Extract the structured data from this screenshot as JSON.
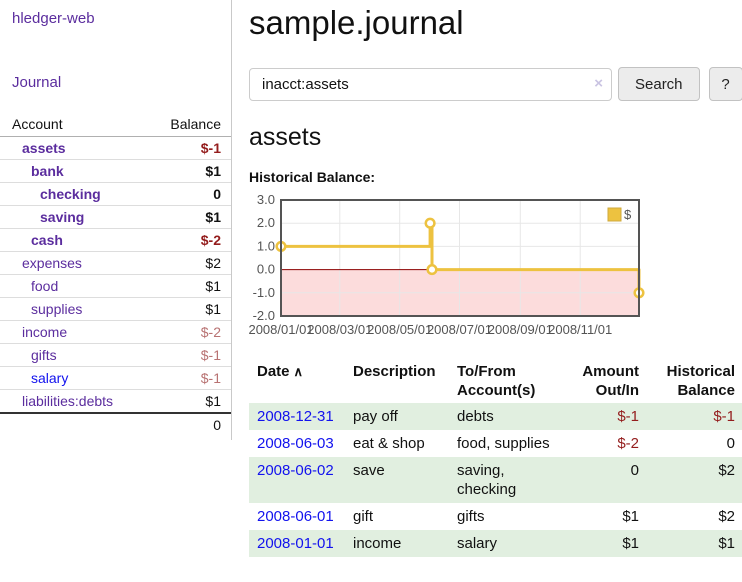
{
  "app": {
    "title": "hledger-web"
  },
  "sidebar": {
    "nav": [
      {
        "label": "Journal"
      }
    ],
    "accounts_table": {
      "headers": [
        "Account",
        "Balance"
      ],
      "rows": [
        {
          "name": "assets",
          "balance": "$-1",
          "level": 1,
          "bold": true,
          "balance_style": "negative-strong"
        },
        {
          "name": "bank",
          "balance": "$1",
          "level": 2,
          "bold": true,
          "balance_style": "normal"
        },
        {
          "name": "checking",
          "balance": "0",
          "level": 3,
          "bold": true,
          "balance_style": "normal"
        },
        {
          "name": "saving",
          "balance": "$1",
          "level": 3,
          "bold": true,
          "balance_style": "normal"
        },
        {
          "name": "cash",
          "balance": "$-2",
          "level": 2,
          "bold": true,
          "balance_style": "negative-strong"
        },
        {
          "name": "expenses",
          "balance": "$2",
          "level": 1,
          "bold": false,
          "balance_style": "normal"
        },
        {
          "name": "food",
          "balance": "$1",
          "level": 2,
          "bold": false,
          "balance_style": "normal"
        },
        {
          "name": "supplies",
          "balance": "$1",
          "level": 2,
          "bold": false,
          "balance_style": "normal"
        },
        {
          "name": "income",
          "balance": "$-2",
          "level": 1,
          "bold": false,
          "balance_style": "negative-soft"
        },
        {
          "name": "gifts",
          "balance": "$-1",
          "level": 2,
          "bold": false,
          "balance_style": "negative-soft"
        },
        {
          "name": "salary",
          "balance": "$-1",
          "level": 2,
          "bold": false,
          "balance_style": "negative-soft",
          "link_style": "unvisited"
        },
        {
          "name": "liabilities:debts",
          "balance": "$1",
          "level": 1,
          "bold": false,
          "balance_style": "normal"
        }
      ],
      "total": "0"
    }
  },
  "header": {
    "title": "sample.journal"
  },
  "search": {
    "value": "inacct:assets",
    "placeholder": "",
    "clear_icon": "×",
    "button_label": "Search",
    "help_label": "?"
  },
  "account_page": {
    "title": "assets",
    "chart_label": "Historical Balance:"
  },
  "chart_data": {
    "type": "line",
    "title": "Historical Balance",
    "step": true,
    "series": [
      {
        "name": "$",
        "color": "#edc240",
        "points": [
          [
            "2008/01/01",
            1
          ],
          [
            "2008/06/01",
            2
          ],
          [
            "2008/06/03",
            0
          ],
          [
            "2008/12/31",
            -1
          ]
        ]
      }
    ],
    "ylim": [
      -2,
      3
    ],
    "yticks": [
      3,
      2,
      1,
      0,
      -1,
      -2
    ],
    "xticks": [
      "2008/01/01",
      "2008/03/01",
      "2008/05/01",
      "2008/07/01",
      "2008/09/01",
      "2008/11/01"
    ],
    "grid": true,
    "legend_position": "top-right",
    "negative_region_color": "#fcdcdc",
    "zero_line_color": "#8b0000",
    "grid_color": "#e7e7e7",
    "border_color": "#545454",
    "tick_color": "#545454"
  },
  "register_table": {
    "sort_indicator": "∧",
    "headers": [
      {
        "label": "Date",
        "sortable": true
      },
      {
        "label": "Description"
      },
      {
        "label": "To/From Account(s)"
      },
      {
        "label": "Amount Out/In",
        "numeric": true
      },
      {
        "label": "Historical Balance",
        "numeric": true
      }
    ],
    "rows": [
      {
        "date": "2008-12-31",
        "description": "pay off",
        "accounts": "debts",
        "amount": "$-1",
        "amount_negative": true,
        "balance": "$-1",
        "balance_negative": true
      },
      {
        "date": "2008-06-03",
        "description": "eat & shop",
        "accounts": "food, supplies",
        "amount": "$-2",
        "amount_negative": true,
        "balance": "0",
        "balance_negative": false
      },
      {
        "date": "2008-06-02",
        "description": "save",
        "accounts": "saving, checking",
        "amount": "0",
        "amount_negative": false,
        "balance": "$2",
        "balance_negative": false
      },
      {
        "date": "2008-06-01",
        "description": "gift",
        "accounts": "gifts",
        "amount": "$1",
        "amount_negative": false,
        "balance": "$2",
        "balance_negative": false
      },
      {
        "date": "2008-01-01",
        "description": "income",
        "accounts": "salary",
        "amount": "$1",
        "amount_negative": false,
        "balance": "$1",
        "balance_negative": false
      }
    ]
  },
  "colors": {
    "link_purple": "#5b2d9e",
    "link_blue": "#1212ee",
    "negative_strong": "#941d1d",
    "negative_soft": "#b87272",
    "row_green": "#e1efe0",
    "chart_line": "#edc240"
  }
}
